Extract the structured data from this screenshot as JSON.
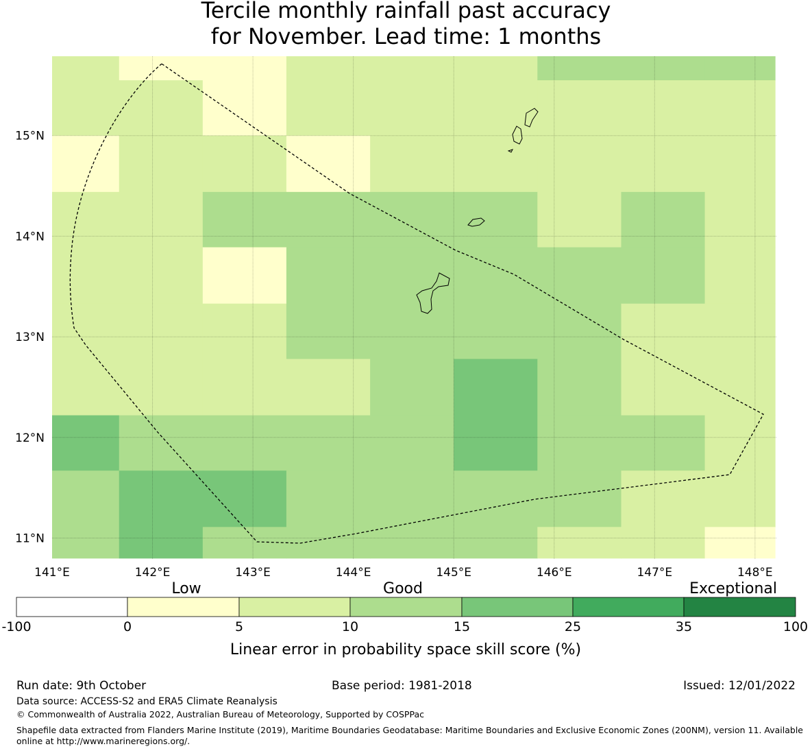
{
  "title_line1": "Tercile monthly rainfall past accuracy",
  "title_line2": "for November. Lead time: 1 months",
  "map": {
    "lon_range": [
      141,
      148.2
    ],
    "lat_range": [
      10.8,
      15.8
    ],
    "x_ticks": [
      "141°E",
      "142°E",
      "143°E",
      "144°E",
      "145°E",
      "146°E",
      "147°E",
      "148°E"
    ],
    "y_ticks": [
      "15°N",
      "14°N",
      "13°N",
      "12°N",
      "11°N"
    ],
    "grid": true,
    "colors": [
      "#ffffff",
      "#ffffcc",
      "#d9f0a3",
      "#addd8e",
      "#78c679",
      "#41ab5d",
      "#238443"
    ],
    "cell_lon_edges": [
      141,
      141.667,
      142.5,
      143.333,
      144.167,
      145.0,
      145.833,
      146.667,
      147.5,
      148.2
    ],
    "cell_lat_edges": [
      15.8,
      15.55,
      15.0,
      14.44,
      13.89,
      13.33,
      12.78,
      12.22,
      11.67,
      11.11,
      10.8
    ],
    "cells": [
      [
        2,
        1,
        1,
        2,
        2,
        2,
        3,
        3,
        3
      ],
      [
        2,
        2,
        1,
        2,
        2,
        2,
        2,
        2,
        2
      ],
      [
        1,
        2,
        2,
        1,
        2,
        2,
        2,
        2,
        2
      ],
      [
        2,
        2,
        3,
        3,
        3,
        3,
        2,
        3,
        2
      ],
      [
        2,
        2,
        1,
        3,
        3,
        3,
        3,
        3,
        2
      ],
      [
        2,
        2,
        2,
        3,
        3,
        3,
        3,
        2,
        2
      ],
      [
        2,
        2,
        2,
        2,
        3,
        4,
        3,
        2,
        2
      ],
      [
        4,
        3,
        3,
        3,
        3,
        4,
        3,
        3,
        2
      ],
      [
        3,
        4,
        4,
        3,
        3,
        3,
        3,
        2,
        2
      ],
      [
        3,
        4,
        3,
        3,
        3,
        3,
        2,
        2,
        1
      ]
    ]
  },
  "legend": {
    "category_low": "Low",
    "category_good": "Good",
    "category_exceptional": "Exceptional",
    "ticks": [
      "-100",
      "0",
      "5",
      "10",
      "15",
      "25",
      "35",
      "100"
    ],
    "label": "Linear error in probability space skill score (%)"
  },
  "footer": {
    "run_date": "Run date: 9th October",
    "base_period": "Base period: 1981-2018",
    "issued": "Issued: 12/01/2022",
    "data_source": "Data source: ACCESS-S2 and ERA5 Climate Reanalysis",
    "copyright": "© Commonwealth of Australia 2022, Australian Bureau of Meteorology, Supported by COSPPac",
    "shapefile_note": "Shapefile data extracted from Flanders Marine Institute (2019), Maritime Boundaries Geodatabase: Maritime Boundaries and Exclusive Economic Zones (200NM), version 11. Available online at http://www.marineregions.org/."
  }
}
